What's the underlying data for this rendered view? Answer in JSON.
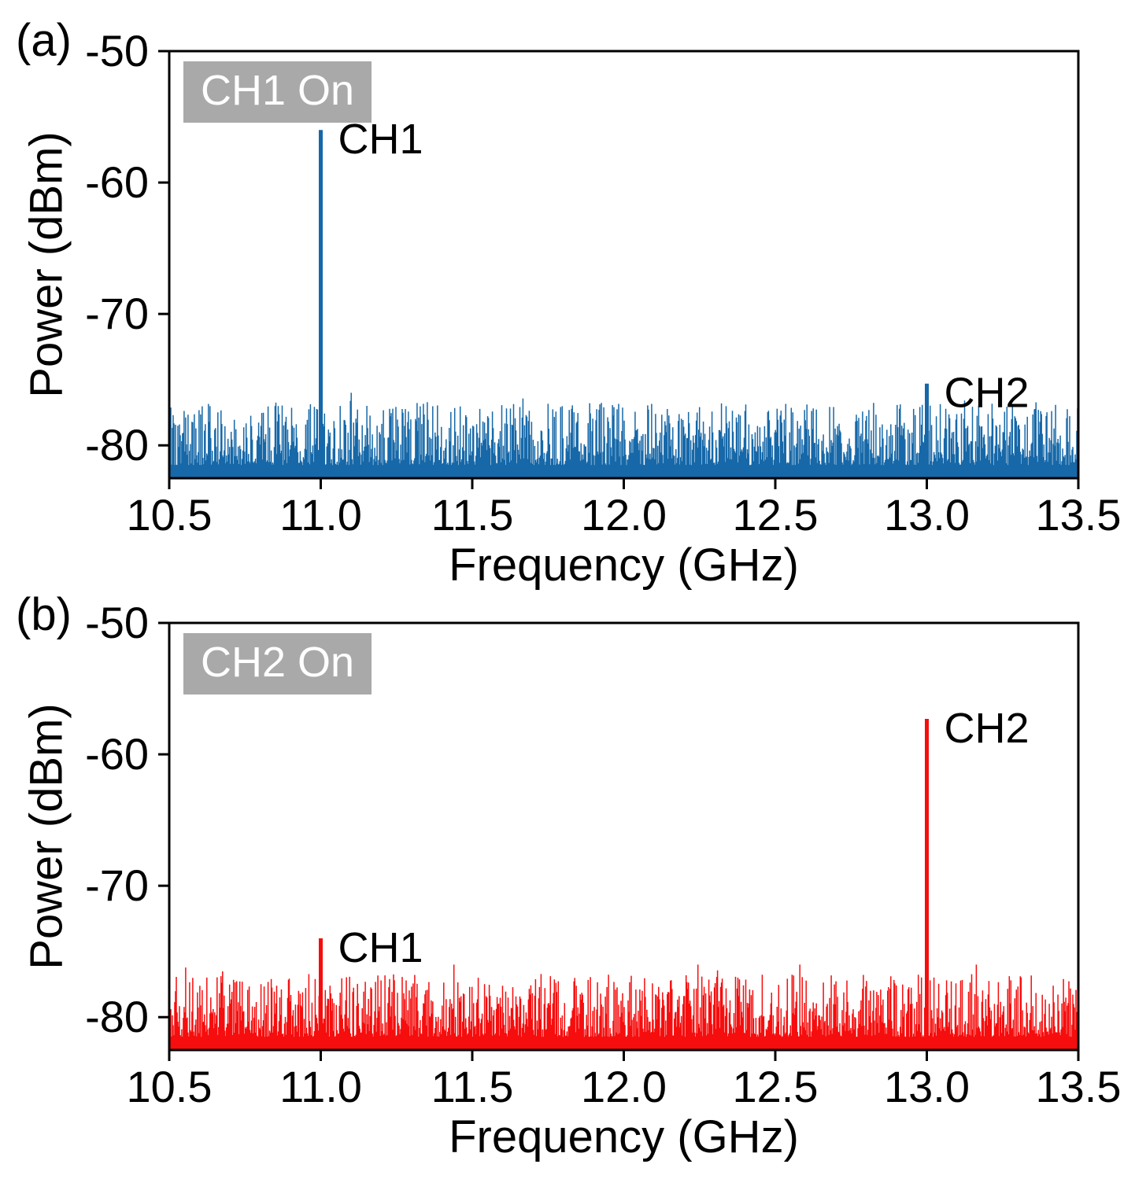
{
  "figure": {
    "background": "#ffffff"
  },
  "legend_style": {
    "background": "#a9a9a9",
    "text_color": "#ffffff"
  },
  "chart_data": [
    {
      "type": "line",
      "panel_label": "(a)",
      "legend": "CH1 On",
      "xlabel": "Frequency (GHz)",
      "ylabel": "Power (dBm)",
      "xlim": [
        10.5,
        13.5
      ],
      "ylim": [
        -82.5,
        -50
      ],
      "xticks": [
        10.5,
        11.0,
        11.5,
        12.0,
        12.5,
        13.0,
        13.5
      ],
      "yticks": [
        -50,
        -60,
        -70,
        -80
      ],
      "color": "#1668a8",
      "grid": false,
      "legend_position": "top-left",
      "noise_floor_dbm": {
        "typical": -79.5,
        "min": -82,
        "max": -76
      },
      "peaks": [
        {
          "label": "CH1",
          "freq_ghz": 11.0,
          "power_dbm": -56.0
        },
        {
          "label": "CH2",
          "freq_ghz": 13.0,
          "power_dbm": -75.3
        }
      ]
    },
    {
      "type": "line",
      "panel_label": "(b)",
      "legend": "CH2 On",
      "xlabel": "Frequency (GHz)",
      "ylabel": "Power (dBm)",
      "xlim": [
        10.5,
        13.5
      ],
      "ylim": [
        -82.5,
        -50
      ],
      "xticks": [
        10.5,
        11.0,
        11.5,
        12.0,
        12.5,
        13.0,
        13.5
      ],
      "yticks": [
        -50,
        -60,
        -70,
        -80
      ],
      "color": "#f60d0d",
      "grid": false,
      "legend_position": "top-left",
      "noise_floor_dbm": {
        "typical": -79.5,
        "min": -82,
        "max": -76
      },
      "peaks": [
        {
          "label": "CH1",
          "freq_ghz": 11.0,
          "power_dbm": -74.0
        },
        {
          "label": "CH2",
          "freq_ghz": 13.0,
          "power_dbm": -57.3
        }
      ]
    }
  ]
}
